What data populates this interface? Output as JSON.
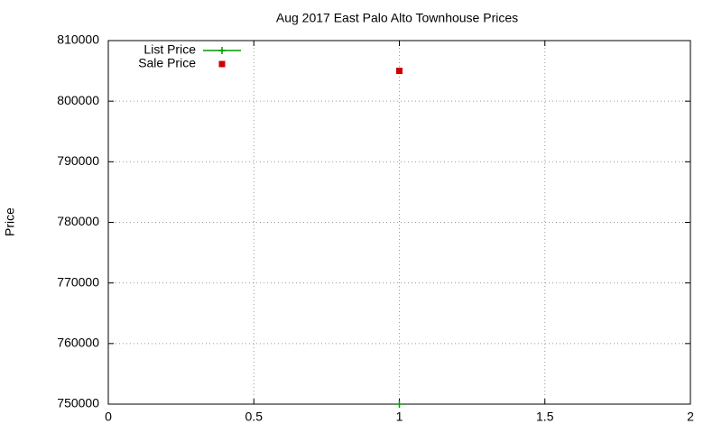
{
  "chart_data": {
    "type": "scatter",
    "title": "Aug 2017 East Palo Alto Townhouse Prices",
    "y_label": "Price",
    "x": [
      1
    ],
    "series": [
      {
        "name": "List Price",
        "color": "#009900",
        "marker": "plus",
        "line": true,
        "values": [
          750000
        ]
      },
      {
        "name": "Sale Price",
        "color": "#cc0000",
        "marker": "square",
        "line": false,
        "values": [
          805000
        ]
      }
    ],
    "xlim": [
      0,
      2
    ],
    "xticks": [
      0,
      0.5,
      1,
      1.5,
      2
    ],
    "ylim": [
      750000,
      810000
    ],
    "yticks": [
      750000,
      760000,
      770000,
      780000,
      790000,
      800000,
      810000
    ],
    "grid": true,
    "legend": "top-left"
  }
}
